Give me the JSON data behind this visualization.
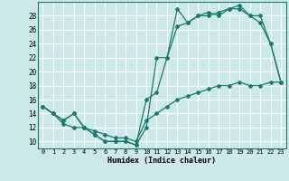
{
  "xlabel": "Humidex (Indice chaleur)",
  "bg_color": "#cce8e8",
  "grid_color": "#ffffff",
  "line_color": "#1a7a6e",
  "xlim": [
    -0.5,
    23.5
  ],
  "ylim": [
    9,
    30
  ],
  "xticks": [
    0,
    1,
    2,
    3,
    4,
    5,
    6,
    7,
    8,
    9,
    10,
    11,
    12,
    13,
    14,
    15,
    16,
    17,
    18,
    19,
    20,
    21,
    22,
    23
  ],
  "yticks": [
    10,
    12,
    14,
    16,
    18,
    20,
    22,
    24,
    26,
    28
  ],
  "line1_x": [
    0,
    1,
    2,
    3,
    4,
    5,
    6,
    7,
    8,
    9,
    10,
    11,
    12,
    13,
    14,
    15,
    16,
    17,
    18,
    19,
    20,
    21,
    22,
    23
  ],
  "line1_y": [
    15,
    14,
    13,
    14,
    12,
    11,
    10,
    10,
    10,
    9.5,
    12,
    22,
    22,
    29,
    27,
    28,
    28,
    28.5,
    29,
    29.5,
    28,
    27,
    24,
    18.5
  ],
  "line2_x": [
    0,
    1,
    2,
    3,
    4,
    5,
    6,
    7,
    8,
    9,
    10,
    11,
    12,
    13,
    14,
    15,
    16,
    17,
    18,
    19,
    20,
    21,
    22,
    23
  ],
  "line2_y": [
    15,
    14,
    13,
    14,
    12,
    11,
    10,
    10,
    10,
    9.5,
    16,
    17,
    22,
    26.5,
    27,
    28,
    28.5,
    28,
    29,
    29,
    28,
    28,
    24,
    18.5
  ],
  "line3_x": [
    0,
    1,
    2,
    3,
    4,
    5,
    6,
    7,
    8,
    9,
    10,
    11,
    12,
    13,
    14,
    15,
    16,
    17,
    18,
    19,
    20,
    21,
    22,
    23
  ],
  "line3_y": [
    15,
    14,
    12.5,
    12,
    12,
    11.5,
    11,
    10.5,
    10.5,
    10,
    13,
    14,
    15,
    16,
    16.5,
    17,
    17.5,
    18,
    18,
    18.5,
    18,
    18,
    18.5,
    18.5
  ]
}
